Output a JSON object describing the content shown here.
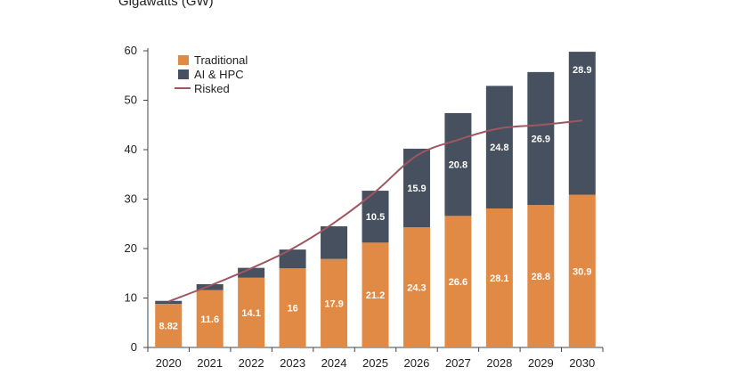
{
  "chart_data": {
    "type": "bar",
    "title": "Gigawatts (GW)",
    "categories": [
      "2020",
      "2021",
      "2022",
      "2023",
      "2024",
      "2025",
      "2026",
      "2027",
      "2028",
      "2029",
      "2030"
    ],
    "series": [
      {
        "name": "Traditional",
        "color": "#e08a45",
        "values": [
          8.82,
          11.6,
          14.1,
          16,
          17.9,
          21.2,
          24.3,
          26.6,
          28.1,
          28.8,
          30.9
        ],
        "labels": [
          "8.82",
          "11.6",
          "14.1",
          "16",
          "17.9",
          "21.2",
          "24.3",
          "26.6",
          "28.1",
          "28.8",
          "30.9"
        ]
      },
      {
        "name": "AI & HPC",
        "color": "#46505e",
        "values": [
          0.6,
          1.2,
          2.0,
          3.8,
          6.6,
          10.5,
          15.9,
          20.8,
          24.8,
          26.9,
          28.9
        ],
        "labels": [
          "",
          "",
          "",
          "",
          "",
          "10.5",
          "15.9",
          "20.8",
          "24.8",
          "26.9",
          "28.9"
        ]
      },
      {
        "name": "Risked",
        "type": "line",
        "color": "#a05660",
        "values": [
          9.3,
          12.5,
          16.0,
          20.0,
          25.2,
          31.5,
          38.8,
          42.0,
          44.3,
          45.0,
          45.9
        ]
      }
    ],
    "yticks": [
      "0",
      "10",
      "20",
      "30",
      "40",
      "50",
      "60"
    ],
    "ylim": [
      0,
      60
    ],
    "legend": {
      "position": "top-left"
    }
  }
}
